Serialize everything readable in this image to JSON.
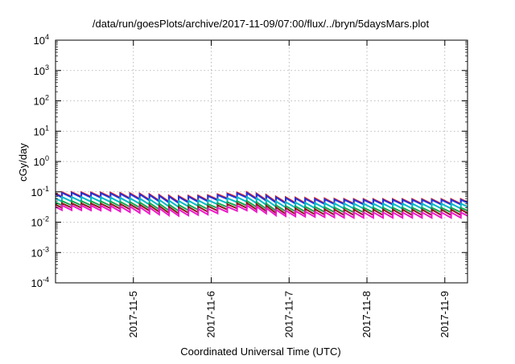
{
  "chart_data": {
    "type": "line",
    "title": "/data/run/goesPlots/archive/2017-11-09/07:00/flux/../bryn/5daysMars.plot",
    "xlabel": "Coordinated Universal Time (UTC)",
    "ylabel": "cGy/day",
    "yscale": "log",
    "ylim": [
      0.0001,
      10000
    ],
    "yticks": [
      {
        "value": 0.0001,
        "base": "10",
        "exp": "-4"
      },
      {
        "value": 0.001,
        "base": "10",
        "exp": "-3"
      },
      {
        "value": 0.01,
        "base": "10",
        "exp": "-2"
      },
      {
        "value": 0.1,
        "base": "10",
        "exp": "-1"
      },
      {
        "value": 1,
        "base": "10",
        "exp": "0"
      },
      {
        "value": 10,
        "base": "10",
        "exp": "1"
      },
      {
        "value": 100,
        "base": "10",
        "exp": "2"
      },
      {
        "value": 1000,
        "base": "10",
        "exp": "3"
      },
      {
        "value": 10000,
        "base": "10",
        "exp": "4"
      }
    ],
    "xlim": [
      "2017-11-04T00:00",
      "2017-11-09T07:00"
    ],
    "xticks": [
      "2017-11-5",
      "2017-11-6",
      "2017-11-7",
      "2017-11-8",
      "2017-11-9"
    ],
    "grid": true,
    "sawtooth_period_hours": 3,
    "series": [
      {
        "color": "#e8201e",
        "peak": [
          0.098,
          0.095,
          0.088,
          0.072,
          0.078,
          0.1,
          0.068,
          0.062,
          0.058,
          0.058,
          0.058,
          0.058
        ],
        "trough": [
          0.07,
          0.068,
          0.058,
          0.045,
          0.052,
          0.07,
          0.045,
          0.042,
          0.041,
          0.04,
          0.04,
          0.04
        ]
      },
      {
        "color": "#2433d8",
        "peak": [
          0.093,
          0.09,
          0.083,
          0.068,
          0.074,
          0.094,
          0.064,
          0.058,
          0.055,
          0.055,
          0.055,
          0.055
        ],
        "trough": [
          0.066,
          0.064,
          0.055,
          0.042,
          0.049,
          0.066,
          0.042,
          0.04,
          0.039,
          0.038,
          0.038,
          0.038
        ]
      },
      {
        "color": "#00b8c8",
        "peak": [
          0.068,
          0.066,
          0.06,
          0.05,
          0.054,
          0.07,
          0.047,
          0.043,
          0.041,
          0.041,
          0.041,
          0.041
        ],
        "trough": [
          0.048,
          0.047,
          0.04,
          0.031,
          0.036,
          0.048,
          0.031,
          0.029,
          0.028,
          0.028,
          0.028,
          0.028
        ]
      },
      {
        "color": "#14a850",
        "peak": [
          0.05,
          0.049,
          0.045,
          0.037,
          0.04,
          0.052,
          0.035,
          0.032,
          0.03,
          0.03,
          0.03,
          0.03
        ],
        "trough": [
          0.036,
          0.035,
          0.03,
          0.023,
          0.027,
          0.036,
          0.023,
          0.022,
          0.021,
          0.021,
          0.021,
          0.021
        ]
      },
      {
        "color": "#8a1a1a",
        "peak": [
          0.042,
          0.041,
          0.038,
          0.031,
          0.034,
          0.044,
          0.03,
          0.027,
          0.026,
          0.026,
          0.026,
          0.026
        ],
        "trough": [
          0.03,
          0.029,
          0.025,
          0.019,
          0.022,
          0.03,
          0.019,
          0.018,
          0.017,
          0.017,
          0.017,
          0.017
        ]
      },
      {
        "color": "#ee18c8",
        "peak": [
          0.036,
          0.035,
          0.032,
          0.026,
          0.028,
          0.037,
          0.025,
          0.022,
          0.021,
          0.021,
          0.021,
          0.021
        ],
        "trough": [
          0.025,
          0.024,
          0.02,
          0.016,
          0.018,
          0.025,
          0.016,
          0.015,
          0.014,
          0.014,
          0.014,
          0.014
        ]
      }
    ]
  }
}
